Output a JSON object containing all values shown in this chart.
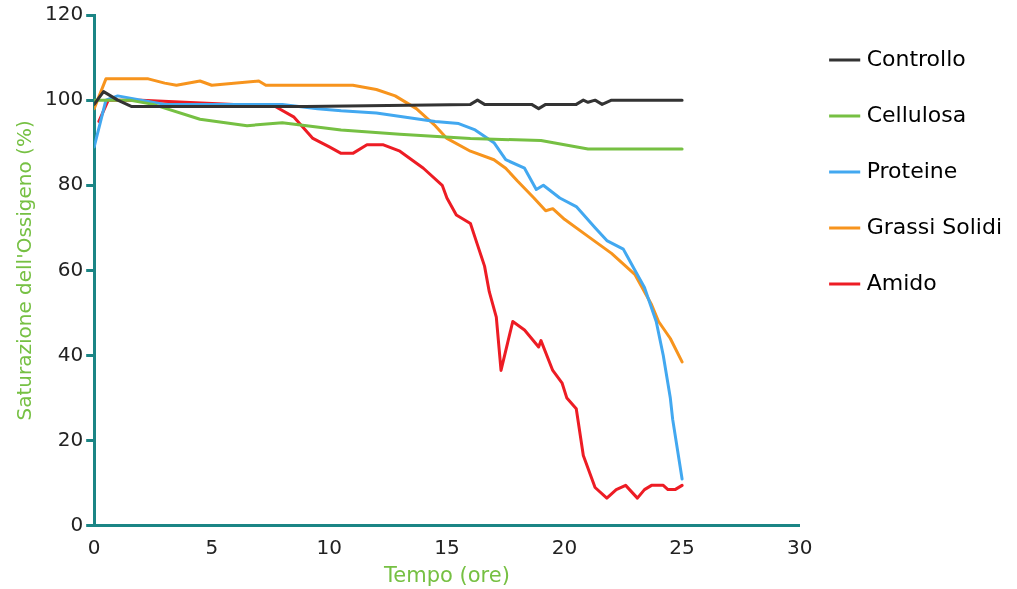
{
  "chart_data": {
    "type": "line",
    "xlabel": "Tempo (ore)",
    "ylabel": "Saturazione dell'Ossigeno (%)",
    "xlim": [
      0,
      30
    ],
    "xticks": [
      0,
      5,
      10,
      15,
      20,
      25,
      30
    ],
    "ylim": [
      0,
      120
    ],
    "yticks": [
      0,
      20,
      40,
      60,
      80,
      100,
      120
    ],
    "grid": false,
    "legend": "right",
    "marker": "none",
    "line_style": "solid",
    "series": [
      {
        "name": "Controllo",
        "color": "#333333",
        "x": [
          0,
          0.4,
          1,
          1.6,
          5,
          9,
          16,
          16.3,
          16.6,
          18.6,
          18.9,
          19.2,
          20.5,
          20.8,
          21,
          21.3,
          21.6,
          22,
          25
        ],
        "values": [
          99,
          102,
          100,
          98.5,
          98.5,
          98.5,
          99,
          100,
          99,
          99,
          98,
          99,
          99,
          100,
          99.5,
          100,
          99,
          100,
          100
        ]
      },
      {
        "name": "Cellulosa",
        "color": "#76c043",
        "x": [
          0,
          1.5,
          2.5,
          4.5,
          6.5,
          8,
          10.5,
          13,
          16,
          19,
          21,
          25
        ],
        "values": [
          100,
          100,
          99,
          95.5,
          94,
          94.7,
          93,
          92,
          91,
          90.5,
          88.5,
          88.5
        ]
      },
      {
        "name": "Proteine",
        "color": "#42a8f0",
        "x": [
          0,
          0.5,
          1,
          2,
          3,
          8,
          9.5,
          10.5,
          12,
          14.5,
          15.5,
          16.2,
          17,
          17.5,
          18.3,
          18.8,
          19.1,
          19.8,
          20.5,
          21.3,
          21.8,
          22.5,
          23,
          23.4,
          23.9,
          24.2,
          24.5,
          24.6,
          25
        ],
        "values": [
          89,
          100,
          101,
          100,
          99,
          99,
          98,
          97.5,
          97,
          95,
          94.5,
          93,
          90,
          86,
          84,
          79,
          80,
          77,
          75,
          70,
          67,
          65,
          60,
          56,
          48,
          40,
          30,
          25,
          11
        ]
      },
      {
        "name": "Grassi Solidi",
        "color": "#f7941d",
        "x": [
          0,
          0.5,
          2.3,
          3,
          3.5,
          4.5,
          5,
          7,
          7.3,
          11,
          12,
          12.8,
          13.7,
          14.5,
          15,
          16,
          17,
          17.5,
          18,
          18.7,
          19.2,
          19.5,
          20,
          21,
          22,
          23,
          23.7,
          24,
          24.5,
          25
        ],
        "values": [
          98,
          105,
          105,
          104,
          103.5,
          104.5,
          103.5,
          104.5,
          103.5,
          103.5,
          102.5,
          101,
          98,
          94,
          91,
          88,
          86,
          84,
          81,
          77,
          74,
          74.5,
          72,
          68,
          64,
          59,
          52,
          48,
          44,
          38.5
        ]
      },
      {
        "name": "Amido",
        "color": "#ed1c24",
        "x": [
          0.2,
          0.6,
          2,
          7.7,
          8.5,
          9.3,
          10,
          10.5,
          11,
          11.6,
          12.3,
          13,
          14,
          14.8,
          15,
          15.4,
          16,
          16.3,
          16.6,
          16.8,
          17.1,
          17.3,
          17.8,
          18.3,
          18.9,
          19,
          19.5,
          19.9,
          20.1,
          20.5,
          20.8,
          21.3,
          21.8,
          22.2,
          22.6,
          23.1,
          23.4,
          23.7,
          24.2,
          24.4,
          24.7,
          25
        ],
        "values": [
          95,
          100,
          100,
          98.5,
          96,
          91,
          89,
          87.5,
          87.5,
          89.5,
          89.5,
          88,
          84,
          80,
          77,
          73,
          71,
          66,
          61,
          55,
          49,
          36.5,
          48,
          46,
          42,
          43.5,
          36.5,
          33.5,
          30,
          27.5,
          16.5,
          9,
          6.5,
          8.5,
          9.5,
          6.5,
          8.5,
          9.5,
          9.5,
          8.5,
          8.5,
          9.5
        ]
      }
    ]
  }
}
